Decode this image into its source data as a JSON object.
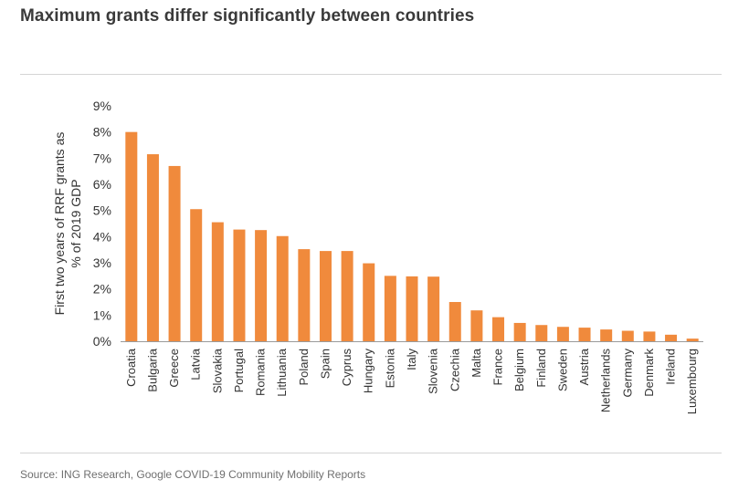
{
  "header": {
    "title": "Maximum grants differ significantly between countries"
  },
  "footer": {
    "source": "Source: ING Research, Google COVID-19 Community Mobility Reports"
  },
  "colors": {
    "bar": "#F08A3C",
    "axis": "#9a9a9a",
    "rule": "#d4d4d4"
  },
  "chart_data": {
    "type": "bar",
    "title": "",
    "xlabel": "",
    "ylabel_lines": [
      "First two years of RRF grants as",
      "% of 2019 GDP"
    ],
    "ylim": [
      0,
      9
    ],
    "yticks": [
      0,
      1,
      2,
      3,
      4,
      5,
      6,
      7,
      8,
      9
    ],
    "ytick_labels": [
      "0%",
      "1%",
      "2%",
      "3%",
      "4%",
      "5%",
      "6%",
      "7%",
      "8%",
      "9%"
    ],
    "grid": false,
    "categories": [
      "Croatia",
      "Bulgaria",
      "Greece",
      "Latvia",
      "Slovakia",
      "Portugal",
      "Romania",
      "Lithuania",
      "Poland",
      "Spain",
      "Cyprus",
      "Hungary",
      "Estonia",
      "Italy",
      "Slovenia",
      "Czechia",
      "Malta",
      "France",
      "Belgium",
      "Finland",
      "Sweden",
      "Austria",
      "Netherlands",
      "Germany",
      "Denmark",
      "Ireland",
      "Luxembourg"
    ],
    "values": [
      8.0,
      7.15,
      6.7,
      5.05,
      4.55,
      4.27,
      4.25,
      4.02,
      3.52,
      3.45,
      3.45,
      2.98,
      2.5,
      2.48,
      2.47,
      1.5,
      1.18,
      0.92,
      0.7,
      0.62,
      0.55,
      0.52,
      0.45,
      0.4,
      0.37,
      0.25,
      0.1
    ]
  }
}
